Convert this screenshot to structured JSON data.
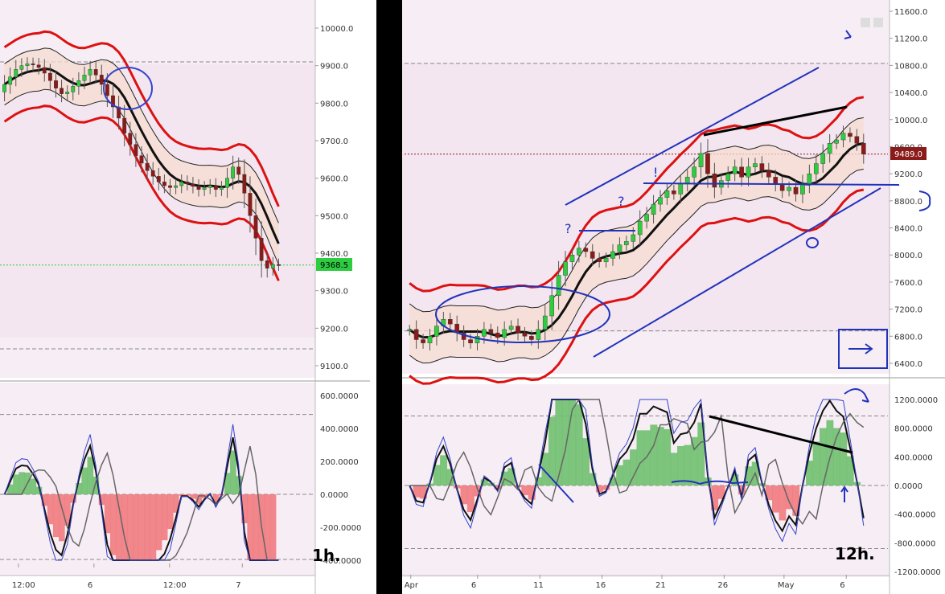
{
  "chart_data": [
    {
      "type": "line",
      "label": "1h.",
      "timeframe": "1h",
      "price_axis": {
        "ticks": [
          "10000.0",
          "9900.0",
          "9800.0",
          "9700.0",
          "9600.0",
          "9500.0",
          "9400.0",
          "9300.0",
          "9200.0",
          "9100.0"
        ],
        "ylim": [
          9080,
          10070
        ]
      },
      "current_price": "9368.5",
      "price_line_color": "#2ecc40",
      "time_axis": [
        "12:00",
        "6",
        "12:00",
        "7"
      ],
      "oscillator_axis": {
        "ticks": [
          "600.0000",
          "400.0000",
          "200.0000",
          "0.0000",
          "-200.0000",
          "-400.0000"
        ],
        "ylim": [
          -480,
          630
        ]
      },
      "candles_close": [
        9850,
        9870,
        9890,
        9900,
        9905,
        9902,
        9895,
        9880,
        9860,
        9840,
        9825,
        9830,
        9845,
        9860,
        9875,
        9890,
        9875,
        9850,
        9820,
        9790,
        9760,
        9720,
        9690,
        9660,
        9640,
        9620,
        9605,
        9590,
        9580,
        9575,
        9580,
        9590,
        9585,
        9578,
        9570,
        9575,
        9580,
        9570,
        9575,
        9600,
        9630,
        9610,
        9560,
        9500,
        9440,
        9380,
        9360,
        9370,
        9368.5
      ],
      "colors": {
        "bull": "#2ecc40",
        "bear": "#8b1a1a",
        "midline": "#111111",
        "red_band": "#dd1111",
        "green_band": "#228822",
        "blue_osc": "#3344cc",
        "channel_fill": "#f6dcd0"
      }
    },
    {
      "type": "line",
      "label": "12h.",
      "timeframe": "12h",
      "price_axis": {
        "ticks": [
          "11600.0",
          "11200.0",
          "10800.0",
          "10400.0",
          "10000.0",
          "9600.0",
          "9200.0",
          "8800.0",
          "8400.0",
          "8000.0",
          "7600.0",
          "7200.0",
          "6800.0",
          "6400.0"
        ],
        "ylim": [
          6250,
          11750
        ]
      },
      "current_price": "9489.0",
      "price_line_color": "#8b1a1a",
      "time_axis": [
        "Apr",
        "6",
        "11",
        "16",
        "21",
        "26",
        "May",
        "6"
      ],
      "oscillator_axis": {
        "ticks": [
          "1200.0000",
          "800.0000",
          "400.0000",
          "0.0000",
          "-400.0000",
          "-800.0000",
          "-1200.0000"
        ],
        "ylim": [
          -1260,
          1360
        ]
      },
      "candles_close": [
        6900,
        6750,
        6700,
        6800,
        6950,
        7050,
        6980,
        6850,
        6750,
        6700,
        6800,
        6900,
        6850,
        6780,
        6900,
        6950,
        6850,
        6800,
        6750,
        6900,
        7100,
        7400,
        7700,
        7900,
        8000,
        8100,
        8050,
        7950,
        7900,
        7950,
        8050,
        8150,
        8200,
        8300,
        8500,
        8600,
        8750,
        8850,
        8950,
        8900,
        9050,
        9150,
        9300,
        9500,
        9200,
        9000,
        9100,
        9200,
        9300,
        9150,
        9300,
        9350,
        9250,
        9150,
        9050,
        8950,
        9000,
        8900,
        9050,
        9200,
        9350,
        9500,
        9650,
        9700,
        9800,
        9750,
        9650,
        9489
      ],
      "colors": {
        "bull": "#2ecc40",
        "bear": "#8b1a1a",
        "midline": "#111111",
        "red_band": "#dd1111",
        "green_band": "#228822",
        "blue_osc": "#3344cc",
        "channel_fill": "#f6dcd0",
        "annotation": "#2233bb"
      }
    }
  ]
}
